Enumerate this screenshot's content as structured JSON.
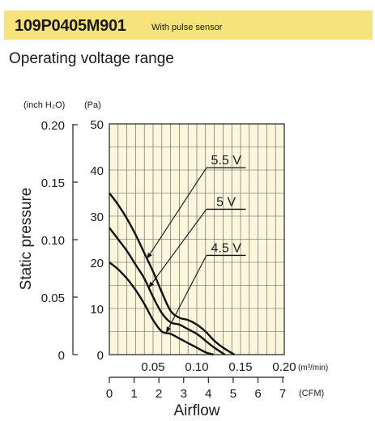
{
  "header": {
    "model": "109P0405M901",
    "note": "With pulse sensor"
  },
  "subtitle": "Operating voltage range",
  "chart_data": {
    "type": "line",
    "title": "Operating voltage range",
    "ylabel": "Static pressure",
    "xlabel": "Airflow",
    "left_axis_unit": "(inch H₂O)",
    "right_axis_unit": "(Pa)",
    "x_unit_metric": "(m³/min)",
    "x_unit_imperial": "(CFM)",
    "xlim": [
      0,
      0.2
    ],
    "ylim": [
      0,
      50
    ],
    "grid": true,
    "background": "#fbf6dc",
    "x_ticks_m3min": [
      "0.05",
      "0.10",
      "0.15",
      "0.20"
    ],
    "x_ticks_cfm": [
      "0",
      "1",
      "2",
      "3",
      "4",
      "5",
      "6",
      "7"
    ],
    "y_ticks_pa": [
      "0",
      "10",
      "20",
      "30",
      "40",
      "50"
    ],
    "y_ticks_inch": [
      "0",
      "0.05",
      "0.10",
      "0.15",
      "0.20"
    ],
    "series": [
      {
        "name": "5.5 V",
        "x": [
          0,
          0.01,
          0.02,
          0.03,
          0.04,
          0.05,
          0.06,
          0.07,
          0.08,
          0.09,
          0.1,
          0.11,
          0.12,
          0.13,
          0.143
        ],
        "y": [
          35,
          32.5,
          29.5,
          26,
          22,
          18,
          13.5,
          9.5,
          8,
          7.5,
          6.5,
          5,
          3,
          1.5,
          0
        ]
      },
      {
        "name": "5 V",
        "x": [
          0,
          0.01,
          0.02,
          0.03,
          0.04,
          0.05,
          0.06,
          0.07,
          0.08,
          0.09,
          0.1,
          0.11,
          0.12,
          0.132
        ],
        "y": [
          27.5,
          25,
          22.5,
          19.5,
          16.5,
          12.5,
          9,
          7,
          6.5,
          5.5,
          4.5,
          3,
          1.5,
          0
        ]
      },
      {
        "name": "4.5 V",
        "x": [
          0,
          0.01,
          0.02,
          0.03,
          0.04,
          0.05,
          0.06,
          0.07,
          0.08,
          0.09,
          0.1,
          0.11,
          0.119
        ],
        "y": [
          20,
          18.5,
          16.5,
          14,
          11,
          7.5,
          5,
          4.5,
          3.5,
          2.5,
          1.5,
          0.5,
          0
        ]
      }
    ]
  }
}
